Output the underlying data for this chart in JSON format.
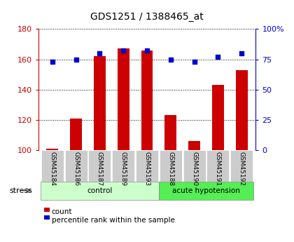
{
  "title": "GDS1251 / 1388465_at",
  "samples": [
    "GSM45184",
    "GSM45186",
    "GSM45187",
    "GSM45189",
    "GSM45193",
    "GSM45188",
    "GSM45190",
    "GSM45191",
    "GSM45192"
  ],
  "counts": [
    101,
    121,
    162,
    167,
    166,
    123,
    106,
    143,
    153
  ],
  "percentiles": [
    73,
    75,
    80,
    82,
    82,
    75,
    73,
    77,
    80
  ],
  "groups": [
    {
      "label": "control",
      "start": 0,
      "end": 5,
      "color": "#ccffcc",
      "edge": "#aaddaa"
    },
    {
      "label": "acute hypotension",
      "start": 5,
      "end": 9,
      "color": "#55ee55",
      "edge": "#44cc44"
    }
  ],
  "ylim_left": [
    100,
    180
  ],
  "ylim_right": [
    0,
    100
  ],
  "yticks_left": [
    100,
    120,
    140,
    160,
    180
  ],
  "yticks_right": [
    0,
    25,
    50,
    75,
    100
  ],
  "ytick_labels_right": [
    "0",
    "25",
    "50",
    "75",
    "100%"
  ],
  "bar_color": "#cc0000",
  "dot_color": "#0000cc",
  "bar_width": 0.5,
  "stress_label": "stress",
  "legend_items": [
    "count",
    "percentile rank within the sample"
  ],
  "legend_colors": [
    "#cc0000",
    "#0000cc"
  ],
  "bg_color_samples": "#cccccc",
  "title_color": "black"
}
